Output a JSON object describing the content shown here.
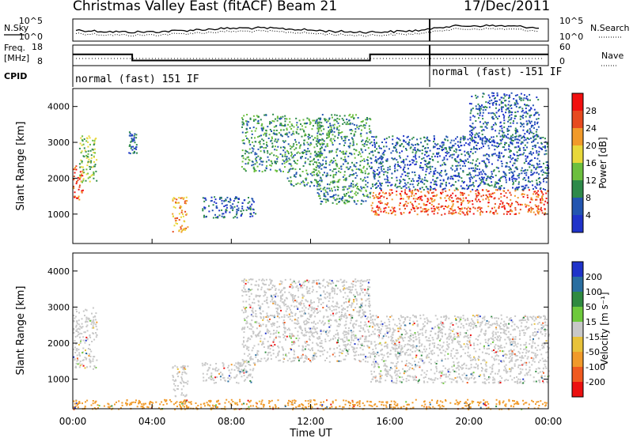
{
  "header": {
    "title": "Christmas Valley East (fitACF)",
    "beam": "Beam 21",
    "date": "17/Dec/2011"
  },
  "top_panels": {
    "nsky_label": "N.Sky",
    "nsearch_label": "N.Search",
    "noise_ticks": [
      "10^5",
      "10^0"
    ],
    "freq_label_1": "Freq.",
    "freq_label_2": "[MHz]",
    "freq_ticks": [
      "18",
      "8"
    ],
    "nave_label": "Nave",
    "nave_ticks": [
      "60",
      "0"
    ],
    "cpid_label": "CPID",
    "cpid_left": "normal (fast) 151 IF",
    "cpid_right": "normal (fast) -151 IF",
    "freq_series_mhz": [
      {
        "t": 0.0,
        "v": 13.5
      },
      {
        "t": 3.0,
        "v": 13.5
      },
      {
        "t": 3.0,
        "v": 10.5
      },
      {
        "t": 15.0,
        "v": 10.5
      },
      {
        "t": 15.0,
        "v": 13.5
      },
      {
        "t": 24.0,
        "v": 13.5
      }
    ]
  },
  "axes": {
    "ylabel": "Slant Range [km]",
    "xlabel": "Time UT",
    "y_ticks": [
      "1000",
      "2000",
      "3000",
      "4000"
    ],
    "x_ticks": [
      "00:00",
      "04:00",
      "08:00",
      "12:00",
      "16:00",
      "20:00",
      "00:00"
    ]
  },
  "power_scale": {
    "label": "Power [dB]",
    "ticks": [
      "4",
      "8",
      "12",
      "16",
      "20",
      "24",
      "28"
    ],
    "colors": [
      "#1f33c9",
      "#2255b0",
      "#2e8a4a",
      "#6cbf3e",
      "#e8d83a",
      "#f19a2a",
      "#e74a1f",
      "#f10f0f"
    ]
  },
  "velocity_scale": {
    "label": "Velocity [m s⁻¹]",
    "ticks": [
      "200",
      "100",
      "50",
      "15",
      "-15",
      "-50",
      "-100",
      "-200"
    ],
    "colors": [
      "#1f33c9",
      "#2a6ea0",
      "#2f8a40",
      "#6ec93c",
      "#c8c8c8",
      "#e8c23a",
      "#f19a2a",
      "#f05a1f",
      "#ec1010"
    ]
  },
  "chart_data": [
    {
      "type": "heatmap",
      "title": "",
      "xlabel": "",
      "ylabel": "Slant Range [km]",
      "xlim": [
        0,
        24
      ],
      "ylim": [
        180,
        4500
      ],
      "value_label": "Power [dB]",
      "regions": [
        {
          "t0": 0.0,
          "t1": 0.5,
          "r0": 1400,
          "r1": 2400,
          "level": 6
        },
        {
          "t0": 0.3,
          "t1": 1.2,
          "r0": 1900,
          "r1": 3200,
          "level": 3
        },
        {
          "t0": 2.8,
          "t1": 3.2,
          "r0": 2700,
          "r1": 3400,
          "level": 1
        },
        {
          "t0": 5.0,
          "t1": 5.8,
          "r0": 500,
          "r1": 1500,
          "level": 5
        },
        {
          "t0": 6.5,
          "t1": 9.2,
          "r0": 900,
          "r1": 1500,
          "level": 1
        },
        {
          "t0": 8.5,
          "t1": 10.8,
          "r0": 2200,
          "r1": 3800,
          "level": 2
        },
        {
          "t0": 10.8,
          "t1": 12.5,
          "r0": 1800,
          "r1": 3700,
          "level": 2
        },
        {
          "t0": 12.3,
          "t1": 15.0,
          "r0": 1300,
          "r1": 3800,
          "level": 2
        },
        {
          "t0": 15.0,
          "t1": 24.0,
          "r0": 1000,
          "r1": 1700,
          "level": 6
        },
        {
          "t0": 15.0,
          "t1": 24.0,
          "r0": 1700,
          "r1": 3200,
          "level": 1
        },
        {
          "t0": 20.0,
          "t1": 23.5,
          "r0": 3000,
          "r1": 4400,
          "level": 1
        }
      ]
    },
    {
      "type": "heatmap",
      "title": "",
      "xlabel": "Time UT",
      "ylabel": "Slant Range [km]",
      "xlim": [
        0,
        24
      ],
      "ylim": [
        180,
        4500
      ],
      "value_label": "Velocity [m s⁻¹]",
      "regions": [
        {
          "t0": 0.0,
          "t1": 1.2,
          "r0": 1300,
          "r1": 3000,
          "level": 4
        },
        {
          "t0": 5.0,
          "t1": 5.8,
          "r0": 500,
          "r1": 1400,
          "level": 4
        },
        {
          "t0": 6.5,
          "t1": 9.2,
          "r0": 900,
          "r1": 1500,
          "level": 4
        },
        {
          "t0": 8.5,
          "t1": 15.0,
          "r0": 1500,
          "r1": 3800,
          "level": 4
        },
        {
          "t0": 15.0,
          "t1": 24.0,
          "r0": 900,
          "r1": 2800,
          "level": 4
        },
        {
          "t0": 0.0,
          "t1": 24.0,
          "r0": 180,
          "r1": 450,
          "level": 6
        }
      ]
    }
  ]
}
